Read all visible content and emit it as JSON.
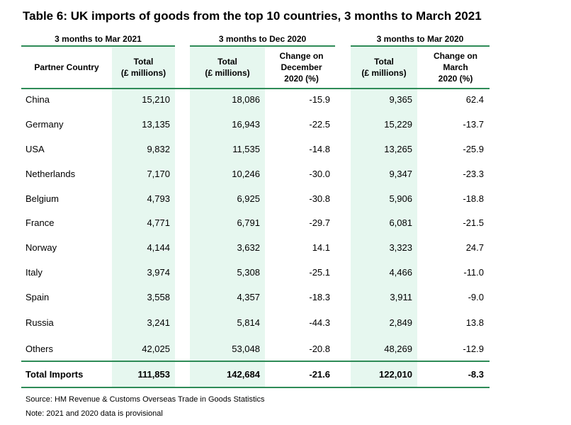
{
  "title": "Table 6: UK imports of goods from the top 10 countries, 3 months to March 2021",
  "accent_color": "#2e8b57",
  "tint_color": "#e6f7ef",
  "group_headers": [
    "3 months to Mar 2021",
    "3 months to Dec 2020",
    "3 months to Mar 2020"
  ],
  "column_headers": {
    "partner": "Partner Country",
    "total_2021": "Total\n(£ millions)",
    "total_dec2020": "Total\n(£ millions)",
    "change_dec2020": "Change on\nDecember\n2020 (%)",
    "total_mar2020": "Total\n(£ millions)",
    "change_mar2020": "Change on\nMarch\n2020 (%)"
  },
  "rows": [
    {
      "country": "China",
      "t2021": "15,210",
      "tdec": "18,086",
      "cdec": "-15.9",
      "tmar": "9,365",
      "cmar": "62.4"
    },
    {
      "country": "Germany",
      "t2021": "13,135",
      "tdec": "16,943",
      "cdec": "-22.5",
      "tmar": "15,229",
      "cmar": "-13.7"
    },
    {
      "country": "USA",
      "t2021": "9,832",
      "tdec": "11,535",
      "cdec": "-14.8",
      "tmar": "13,265",
      "cmar": "-25.9"
    },
    {
      "country": "Netherlands",
      "t2021": "7,170",
      "tdec": "10,246",
      "cdec": "-30.0",
      "tmar": "9,347",
      "cmar": "-23.3"
    },
    {
      "country": "Belgium",
      "t2021": "4,793",
      "tdec": "6,925",
      "cdec": "-30.8",
      "tmar": "5,906",
      "cmar": "-18.8"
    },
    {
      "country": "France",
      "t2021": "4,771",
      "tdec": "6,791",
      "cdec": "-29.7",
      "tmar": "6,081",
      "cmar": "-21.5"
    },
    {
      "country": "Norway",
      "t2021": "4,144",
      "tdec": "3,632",
      "cdec": "14.1",
      "tmar": "3,323",
      "cmar": "24.7"
    },
    {
      "country": "Italy",
      "t2021": "3,974",
      "tdec": "5,308",
      "cdec": "-25.1",
      "tmar": "4,466",
      "cmar": "-11.0"
    },
    {
      "country": "Spain",
      "t2021": "3,558",
      "tdec": "4,357",
      "cdec": "-18.3",
      "tmar": "3,911",
      "cmar": "-9.0"
    },
    {
      "country": "Russia",
      "t2021": "3,241",
      "tdec": "5,814",
      "cdec": "-44.3",
      "tmar": "2,849",
      "cmar": "13.8"
    },
    {
      "country": "Others",
      "t2021": "42,025",
      "tdec": "53,048",
      "cdec": "-20.8",
      "tmar": "48,269",
      "cmar": "-12.9"
    }
  ],
  "total": {
    "country": "Total Imports",
    "t2021": "111,853",
    "tdec": "142,684",
    "cdec": "-21.6",
    "tmar": "122,010",
    "cmar": "-8.3"
  },
  "notes": {
    "source": "Source: HM Revenue & Customs Overseas Trade in Goods Statistics",
    "note": "Note: 2021 and 2020 data is provisional"
  }
}
